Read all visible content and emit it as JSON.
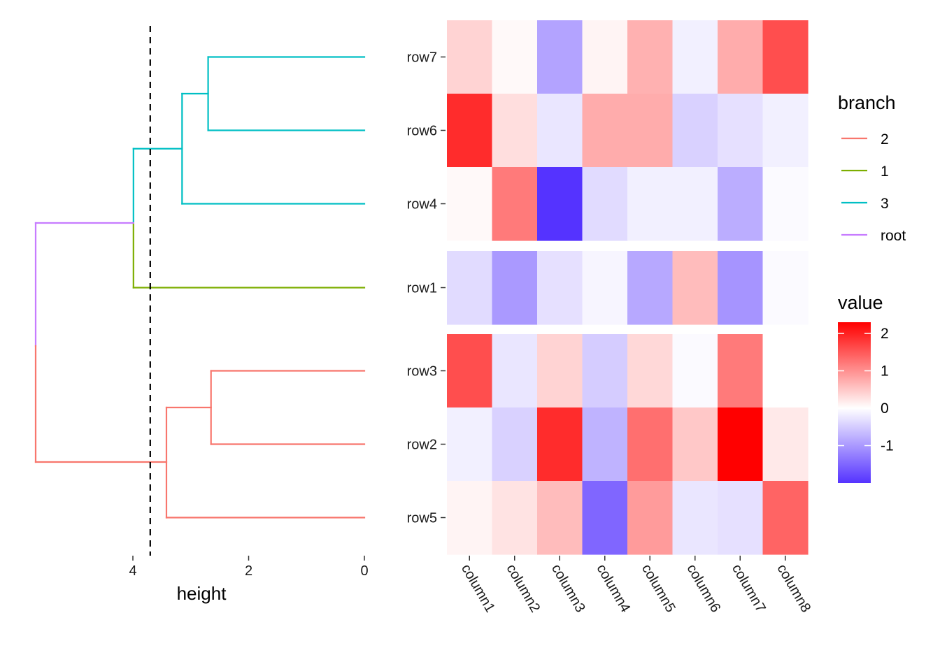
{
  "chart_data": [
    {
      "type": "dendrogram",
      "orientation": "horizontal",
      "xlabel": "height",
      "x_ticks": [
        4,
        2,
        0
      ],
      "xlim": [
        5.6,
        0
      ],
      "cut_height": 3.7,
      "leaves_top_to_bottom": [
        "row7",
        "row6",
        "row4",
        "row1",
        "row3",
        "row2",
        "row5"
      ],
      "segments": [
        {
          "branch": "3",
          "x1": 0,
          "x2": 2.7,
          "y1": "row7",
          "y2": "row7"
        },
        {
          "branch": "3",
          "x1": 0,
          "x2": 2.7,
          "y1": "row6",
          "y2": "row6"
        },
        {
          "branch": "3",
          "x1": 2.7,
          "x2": 2.7,
          "y1": "row7",
          "y2": "row6"
        },
        {
          "branch": "3",
          "x1": 2.7,
          "x2": 3.15,
          "y1": "row7|row6",
          "y2": "row7|row6"
        },
        {
          "branch": "3",
          "x1": 0,
          "x2": 3.15,
          "y1": "row4",
          "y2": "row4"
        },
        {
          "branch": "3",
          "x1": 3.15,
          "x2": 3.15,
          "y1": "row7|row6",
          "y2": "row4"
        },
        {
          "branch": "3",
          "x1": 3.15,
          "x2": 3.99,
          "y1": "c1",
          "y2": "c1"
        },
        {
          "branch": "3",
          "x1": 3.99,
          "x2": 3.99,
          "y1": "c1",
          "y2": "root"
        },
        {
          "branch": "1",
          "x1": 3.99,
          "x2": 3.99,
          "y1": "root",
          "y2": "row1"
        },
        {
          "branch": "1",
          "x1": 0,
          "x2": 3.99,
          "y1": "row1",
          "y2": "row1"
        },
        {
          "branch": "root",
          "x1": 3.99,
          "x2": 5.68,
          "y1": "root",
          "y2": "root"
        },
        {
          "branch": "root",
          "x1": 5.68,
          "x2": 5.68,
          "y1": "root",
          "y2": "mid"
        },
        {
          "branch": "2",
          "x1": 5.68,
          "x2": 5.68,
          "y1": "mid",
          "y2": "c2"
        },
        {
          "branch": "2",
          "x1": 3.42,
          "x2": 5.68,
          "y1": "c2",
          "y2": "c2"
        },
        {
          "branch": "2",
          "x1": 0,
          "x2": 2.65,
          "y1": "row3",
          "y2": "row3"
        },
        {
          "branch": "2",
          "x1": 0,
          "x2": 2.65,
          "y1": "row2",
          "y2": "row2"
        },
        {
          "branch": "2",
          "x1": 2.65,
          "x2": 2.65,
          "y1": "row3",
          "y2": "row2"
        },
        {
          "branch": "2",
          "x1": 2.65,
          "x2": 3.42,
          "y1": "row3|row2",
          "y2": "row3|row2"
        },
        {
          "branch": "2",
          "x1": 0,
          "x2": 3.42,
          "y1": "row5",
          "y2": "row5"
        },
        {
          "branch": "2",
          "x1": 3.42,
          "x2": 3.42,
          "y1": "row3|row2",
          "y2": "row5"
        }
      ]
    },
    {
      "type": "heatmap",
      "rows": [
        "row7",
        "row6",
        "row4",
        "row1",
        "row3",
        "row2",
        "row5"
      ],
      "row_groups": [
        [
          "row7",
          "row6",
          "row4"
        ],
        [
          "row1"
        ],
        [
          "row3",
          "row2",
          "row5"
        ]
      ],
      "columns": [
        "column1",
        "column2",
        "column3",
        "column4",
        "column5",
        "column6",
        "column7",
        "column8"
      ],
      "values": [
        [
          0.4,
          0.05,
          -0.9,
          0.1,
          0.7,
          -0.15,
          0.75,
          1.6
        ],
        [
          1.9,
          0.3,
          -0.25,
          0.75,
          0.75,
          -0.45,
          -0.3,
          -0.15
        ],
        [
          0.05,
          1.2,
          -2.0,
          -0.35,
          -0.15,
          -0.15,
          -0.8,
          -0.05
        ],
        [
          -0.35,
          -1.0,
          -0.3,
          -0.1,
          -0.85,
          0.6,
          -1.05,
          -0.05
        ],
        [
          1.6,
          -0.25,
          0.4,
          -0.5,
          0.35,
          -0.05,
          1.2,
          0.0
        ],
        [
          -0.15,
          -0.45,
          1.9,
          -0.75,
          1.3,
          0.5,
          2.3,
          0.2
        ],
        [
          0.1,
          0.25,
          0.6,
          -1.5,
          0.9,
          -0.25,
          -0.3,
          1.4
        ]
      ],
      "color_scale": {
        "low": "#5533ff",
        "mid": "#ffffff",
        "high": "#ff0000",
        "min": -2.0,
        "max": 2.3
      }
    }
  ],
  "legend_branch": {
    "title": "branch",
    "items": [
      {
        "label": "2",
        "color": "#F8766D"
      },
      {
        "label": "1",
        "color": "#7CAE00"
      },
      {
        "label": "3",
        "color": "#00BFC4"
      },
      {
        "label": "root",
        "color": "#C77CFF"
      }
    ]
  },
  "legend_value": {
    "title": "value",
    "ticks": [
      2,
      1,
      0,
      -1
    ],
    "tick_labels": [
      "2",
      "1",
      "0",
      "-1"
    ]
  }
}
